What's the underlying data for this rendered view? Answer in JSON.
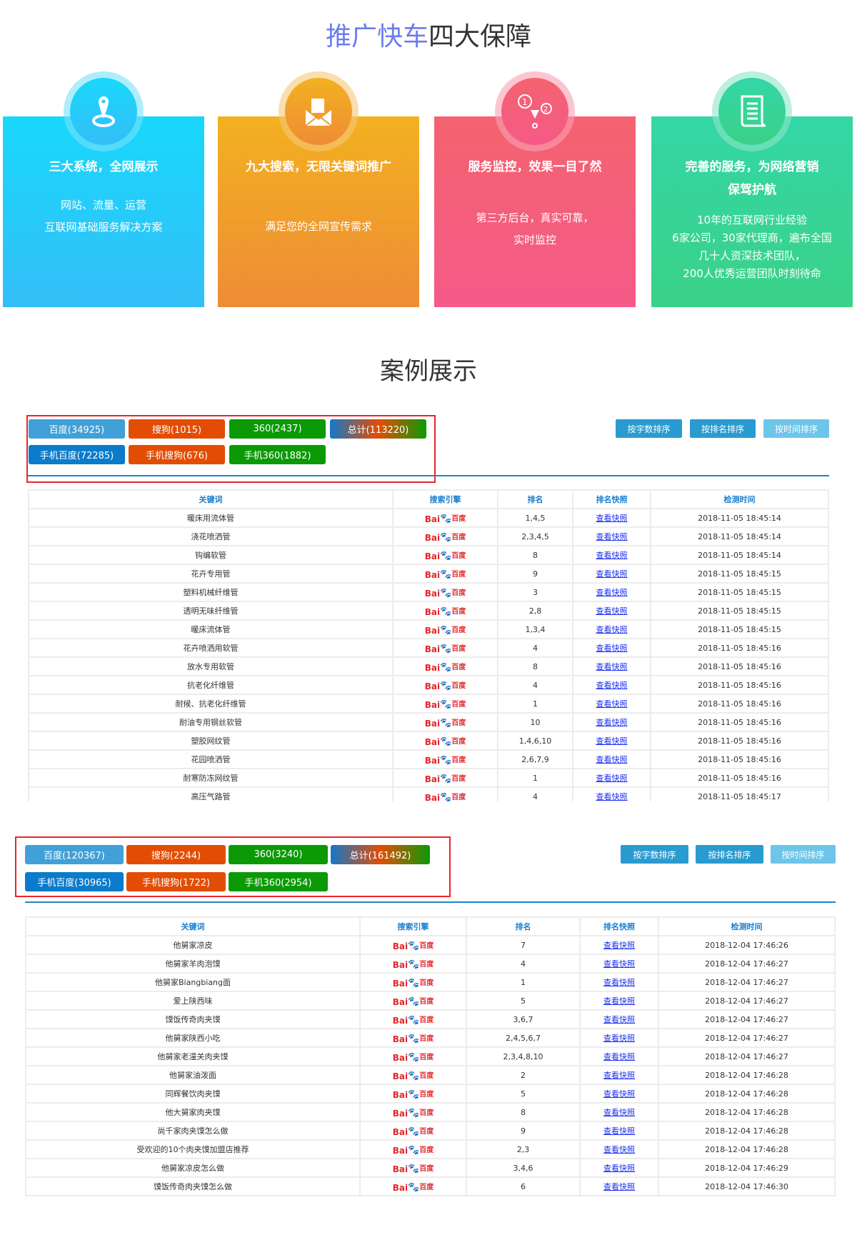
{
  "header": {
    "title_highlight": "推广快车",
    "title_rest": "四大保障"
  },
  "cards": [
    {
      "title": "三大系统，全网展示",
      "lines": [
        "网站、流量、运营",
        "互联网基础服务解决方案"
      ],
      "icon": "location-pin-icon",
      "color": "#19d8fb"
    },
    {
      "title": "九大搜索，无限关键词推广",
      "lines": [
        "满足您的全网宣传需求"
      ],
      "icon": "envelope-icon",
      "color": "#f3b120"
    },
    {
      "title": "服务监控，效果一目了然",
      "lines": [
        "第三方后台，真实可靠，",
        "实时监控"
      ],
      "icon": "flow-monitor-icon",
      "color": "#f4636f"
    },
    {
      "title": "完善的服务，为网络营销保驾护航",
      "lines": [
        "10年的互联网行业经验",
        "6家公司，30家代理商，遍布全国",
        "几十人资深技术团队，",
        "200人优秀运营团队时刻待命"
      ],
      "icon": "scroll-document-icon",
      "color": "#34d6a6"
    }
  ],
  "cases_title": "案例展示",
  "sort_buttons": [
    "按字数排序",
    "按排名排序",
    "按时间排序"
  ],
  "headers": [
    "关键词",
    "搜索引擎",
    "排名",
    "排名快照",
    "检测时间"
  ],
  "engine_logo": {
    "latin": "Bai",
    "cn": "百度"
  },
  "snapshot_link": "查看快照",
  "case1": {
    "stats": [
      "百度(34925)",
      "搜狗(1015)",
      "360(2437)",
      "总计(113220)",
      "手机百度(72285)",
      "手机搜狗(676)",
      "手机360(1882)"
    ],
    "rows": [
      [
        "暖床用流体管",
        "1,4,5",
        "2018-11-05 18:45:14"
      ],
      [
        "浇花喷洒管",
        "2,3,4,5",
        "2018-11-05 18:45:14"
      ],
      [
        "钩编软管",
        "8",
        "2018-11-05 18:45:14"
      ],
      [
        "花卉专用管",
        "9",
        "2018-11-05 18:45:15"
      ],
      [
        "塑料机械纤维管",
        "3",
        "2018-11-05 18:45:15"
      ],
      [
        "透明无味纤维管",
        "2,8",
        "2018-11-05 18:45:15"
      ],
      [
        "暖床流体管",
        "1,3,4",
        "2018-11-05 18:45:15"
      ],
      [
        "花卉喷洒用软管",
        "4",
        "2018-11-05 18:45:16"
      ],
      [
        "放水专用软管",
        "8",
        "2018-11-05 18:45:16"
      ],
      [
        "抗老化纤维管",
        "4",
        "2018-11-05 18:45:16"
      ],
      [
        "耐候、抗老化纤维管",
        "1",
        "2018-11-05 18:45:16"
      ],
      [
        "耐油专用钢丝软管",
        "10",
        "2018-11-05 18:45:16"
      ],
      [
        "塑胶网纹管",
        "1,4,6,10",
        "2018-11-05 18:45:16"
      ],
      [
        "花园喷洒管",
        "2,6,7,9",
        "2018-11-05 18:45:16"
      ],
      [
        "耐寒防冻网纹管",
        "1",
        "2018-11-05 18:45:16"
      ],
      [
        "高压气路管",
        "4",
        "2018-11-05 18:45:17"
      ]
    ]
  },
  "case2": {
    "stats": [
      "百度(120367)",
      "搜狗(2244)",
      "360(3240)",
      "总计(161492)",
      "手机百度(30965)",
      "手机搜狗(1722)",
      "手机360(2954)"
    ],
    "rows": [
      [
        "他舅家凉皮",
        "7",
        "2018-12-04 17:46:26"
      ],
      [
        "他舅家羊肉泡馍",
        "4",
        "2018-12-04 17:46:27"
      ],
      [
        "他舅家Biangbiang面",
        "1",
        "2018-12-04 17:46:27"
      ],
      [
        "爱上陕西味",
        "5",
        "2018-12-04 17:46:27"
      ],
      [
        "馍饭传奇肉夹馍",
        "3,6,7",
        "2018-12-04 17:46:27"
      ],
      [
        "他舅家陕西小吃",
        "2,4,5,6,7",
        "2018-12-04 17:46:27"
      ],
      [
        "他舅家老潼关肉夹馍",
        "2,3,4,8,10",
        "2018-12-04 17:46:27"
      ],
      [
        "他舅家油泼面",
        "2",
        "2018-12-04 17:46:28"
      ],
      [
        "同辉餐饮肉夹馍",
        "5",
        "2018-12-04 17:46:28"
      ],
      [
        "他大舅家肉夹馍",
        "8",
        "2018-12-04 17:46:28"
      ],
      [
        "尚千家肉夹馍怎么做",
        "9",
        "2018-12-04 17:46:28"
      ],
      [
        "受欢迎的10个肉夹馍加盟店推荐",
        "2,3",
        "2018-12-04 17:46:28"
      ],
      [
        "他舅家凉皮怎么做",
        "3,4,6",
        "2018-12-04 17:46:29"
      ],
      [
        "馍饭传奇肉夹馍怎么做",
        "6",
        "2018-12-04 17:46:30"
      ]
    ]
  }
}
